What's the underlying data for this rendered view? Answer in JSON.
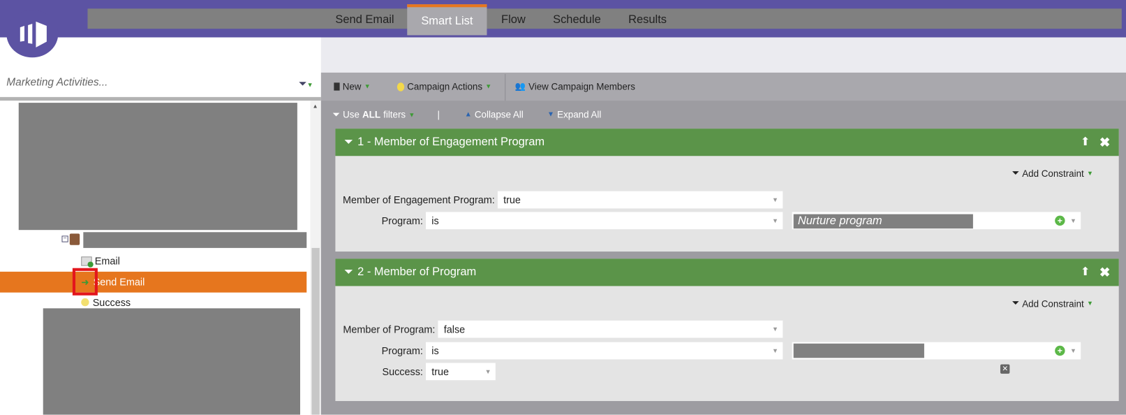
{
  "header": {
    "redacted_title": true,
    "brand_color": "#5c53a3"
  },
  "sidebar": {
    "search_placeholder": "Marketing Activities...",
    "tree": [
      {
        "label": "Email",
        "icon": "email-approved-icon"
      },
      {
        "label": "Send Email",
        "icon": "smart-campaign-icon",
        "selected": true
      },
      {
        "label": "Success",
        "icon": "bulb-icon"
      }
    ],
    "selected_color": "#e6761e"
  },
  "tabs": [
    {
      "label": "Send Email"
    },
    {
      "label": "Smart List",
      "active": true
    },
    {
      "label": "Flow"
    },
    {
      "label": "Schedule"
    },
    {
      "label": "Results"
    }
  ],
  "toolbar": {
    "new": "New",
    "campaign_actions": "Campaign Actions",
    "view_members": "View Campaign Members"
  },
  "filterbar": {
    "use": "Use ",
    "all": "ALL",
    "filters": " filters",
    "divider": "|",
    "collapse": "Collapse All",
    "expand": "Expand All"
  },
  "filters": [
    {
      "title": "1 - Member of Engagement Program",
      "add_constraint": "Add Constraint",
      "rows": [
        {
          "label": "Member of Engagement Program:",
          "value": "true"
        },
        {
          "label": "Program:",
          "value": "is",
          "target": "Nurture program"
        }
      ]
    },
    {
      "title": "2 - Member of Program",
      "add_constraint": "Add Constraint",
      "rows": [
        {
          "label": "Member of Program:",
          "value": "false"
        },
        {
          "label": "Program:",
          "value": "is"
        },
        {
          "label": "Success:",
          "value": "true"
        }
      ]
    }
  ],
  "colors": {
    "filter_header": "#5b9449",
    "accent": "#e6761e"
  }
}
